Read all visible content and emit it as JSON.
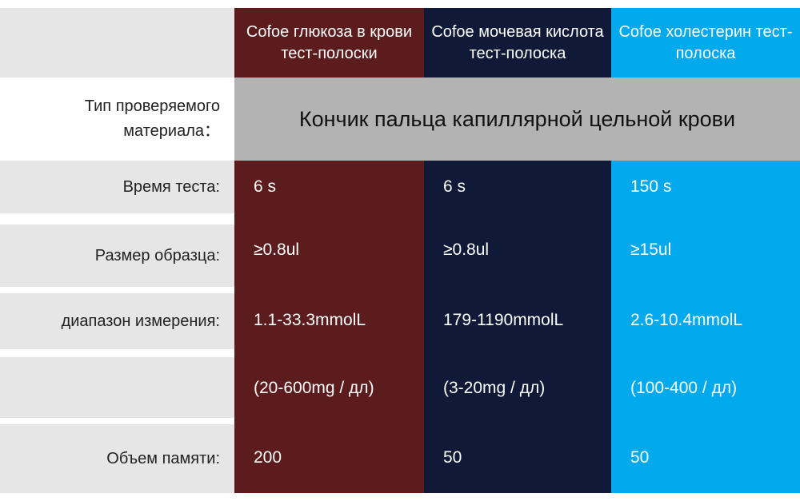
{
  "colors": {
    "col1": "#5c1c1e",
    "col2": "#101a38",
    "col3": "#00a9ec",
    "label_bg": "#e6e6e6",
    "span_bg": "#b3b3b3"
  },
  "columns": [
    {
      "title": "Cofoe глюкоза в крови тест-полоски"
    },
    {
      "title": "Cofoe мочевая кислота тест-полоска"
    },
    {
      "title": "Cofoe холестерин тест-полоска"
    }
  ],
  "material": {
    "label": "Тип проверяемого материала：",
    "value": "Кончик пальца капиллярной цельной крови"
  },
  "rows": [
    {
      "label": "Время теста:",
      "values": [
        "6 s",
        "6 s",
        "150 s"
      ]
    },
    {
      "label": "Размер образца:",
      "values": [
        "≥0.8ul",
        "≥0.8ul",
        "≥15ul"
      ]
    },
    {
      "label": "диапазон измерения:",
      "values": [
        "1.1-33.3mmolL",
        "179-1190mmolL",
        "2.6-10.4mmolL"
      ]
    },
    {
      "label": "",
      "values": [
        "(20-600mg / дл)",
        "(3-20mg / дл)",
        "(100-400 / дл)"
      ]
    },
    {
      "label": "Объем памяти:",
      "values": [
        "200",
        "50",
        "50"
      ]
    }
  ]
}
